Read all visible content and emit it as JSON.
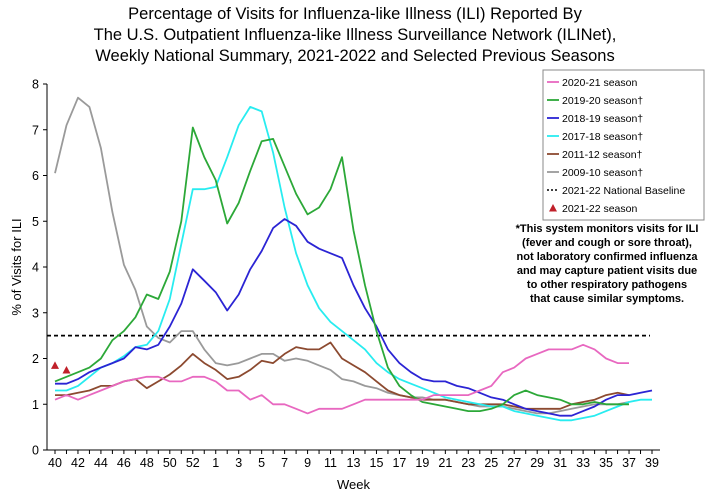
{
  "chart_data": {
    "type": "line",
    "title_lines": [
      "Percentage of Visits for Influenza-like Illness (ILI) Reported By",
      "The U.S. Outpatient Influenza-like Illness Surveillance Network (ILINet),",
      "Weekly National Summary, 2021-2022 and Selected Previous Seasons"
    ],
    "xlabel": "Week",
    "ylabel": "% of Visits for ILI",
    "ylim": [
      0,
      8
    ],
    "yticks": [
      0,
      1,
      2,
      3,
      4,
      5,
      6,
      7,
      8
    ],
    "x_labels": [
      "40",
      "42",
      "44",
      "46",
      "48",
      "50",
      "52",
      "1",
      "3",
      "5",
      "7",
      "9",
      "11",
      "13",
      "15",
      "17",
      "19",
      "21",
      "23",
      "25",
      "27",
      "29",
      "31",
      "33",
      "35",
      "37",
      "39"
    ],
    "n_weeks": 53,
    "baseline": {
      "name": "2021-22 National Baseline",
      "value": 2.5,
      "color": "#000000"
    },
    "series": [
      {
        "name": "2020-21 season",
        "color": "#e868c0",
        "values": [
          1.1,
          1.2,
          1.1,
          1.2,
          1.3,
          1.4,
          1.5,
          1.55,
          1.6,
          1.6,
          1.5,
          1.5,
          1.6,
          1.6,
          1.5,
          1.3,
          1.3,
          1.1,
          1.2,
          1.0,
          1.0,
          0.9,
          0.8,
          0.9,
          0.9,
          0.9,
          1.0,
          1.1,
          1.1,
          1.1,
          1.1,
          1.1,
          1.1,
          1.2,
          1.2,
          1.2,
          1.2,
          1.3,
          1.4,
          1.7,
          1.8,
          2.0,
          2.1,
          2.2,
          2.2,
          2.2,
          2.3,
          2.2,
          2.0,
          1.9,
          1.9
        ]
      },
      {
        "name": "2019-20 season†",
        "color": "#2ca838",
        "values": [
          1.5,
          1.6,
          1.7,
          1.8,
          2.0,
          2.4,
          2.6,
          2.9,
          3.4,
          3.3,
          3.9,
          5.0,
          7.05,
          6.4,
          5.9,
          4.95,
          5.4,
          6.1,
          6.75,
          6.8,
          6.2,
          5.6,
          5.15,
          5.3,
          5.7,
          6.4,
          4.8,
          3.6,
          2.6,
          1.8,
          1.4,
          1.2,
          1.05,
          1.0,
          0.95,
          0.9,
          0.85,
          0.85,
          0.9,
          1.0,
          1.2,
          1.3,
          1.2,
          1.15,
          1.1,
          1.0,
          1.0,
          1.05,
          1.0,
          1.0,
          1.0
        ]
      },
      {
        "name": "2018-19 season†",
        "color": "#2b24d4",
        "values": [
          1.45,
          1.45,
          1.55,
          1.7,
          1.8,
          1.9,
          2.0,
          2.25,
          2.2,
          2.3,
          2.7,
          3.2,
          3.95,
          3.7,
          3.45,
          3.05,
          3.4,
          3.95,
          4.35,
          4.85,
          5.05,
          4.9,
          4.55,
          4.4,
          4.3,
          4.2,
          3.6,
          3.1,
          2.7,
          2.2,
          1.9,
          1.7,
          1.55,
          1.5,
          1.5,
          1.4,
          1.35,
          1.25,
          1.15,
          1.1,
          1.0,
          0.9,
          0.85,
          0.8,
          0.75,
          0.75,
          0.85,
          0.95,
          1.1,
          1.2,
          1.2,
          1.25,
          1.3
        ]
      },
      {
        "name": "2017-18 season†",
        "color": "#28ecf0",
        "values": [
          1.3,
          1.3,
          1.4,
          1.6,
          1.8,
          1.9,
          2.05,
          2.25,
          2.3,
          2.6,
          3.3,
          4.5,
          5.7,
          5.7,
          5.75,
          6.4,
          7.1,
          7.5,
          7.4,
          6.5,
          5.3,
          4.3,
          3.6,
          3.1,
          2.8,
          2.6,
          2.4,
          2.2,
          1.9,
          1.7,
          1.55,
          1.45,
          1.35,
          1.25,
          1.15,
          1.1,
          1.05,
          1.0,
          0.95,
          0.95,
          0.85,
          0.8,
          0.75,
          0.7,
          0.65,
          0.65,
          0.7,
          0.75,
          0.85,
          0.95,
          1.05,
          1.1,
          1.1
        ]
      },
      {
        "name": "2011-12 season†",
        "color": "#8c4a30",
        "values": [
          1.2,
          1.2,
          1.25,
          1.3,
          1.4,
          1.4,
          1.5,
          1.55,
          1.35,
          1.5,
          1.65,
          1.85,
          2.1,
          1.9,
          1.75,
          1.55,
          1.6,
          1.75,
          1.95,
          1.9,
          2.1,
          2.25,
          2.2,
          2.2,
          2.35,
          2.0,
          1.85,
          1.7,
          1.5,
          1.3,
          1.2,
          1.15,
          1.1,
          1.1,
          1.1,
          1.05,
          1.0,
          1.0,
          1.0,
          1.0,
          0.95,
          0.9,
          0.9,
          0.9,
          0.9,
          1.0,
          1.05,
          1.1,
          1.2,
          1.25,
          1.2
        ]
      },
      {
        "name": "2009-10 season†",
        "color": "#9a9a9a",
        "values": [
          6.05,
          7.1,
          7.7,
          7.5,
          6.6,
          5.2,
          4.05,
          3.5,
          2.7,
          2.45,
          2.35,
          2.6,
          2.6,
          2.2,
          1.9,
          1.85,
          1.9,
          2.0,
          2.1,
          2.1,
          1.95,
          2.0,
          1.95,
          1.85,
          1.75,
          1.55,
          1.5,
          1.4,
          1.35,
          1.25,
          1.2,
          1.15,
          1.15,
          1.1,
          1.1,
          1.05,
          1.0,
          0.95,
          0.95,
          0.95,
          0.9,
          0.85,
          0.8,
          0.8,
          0.85,
          0.9,
          0.95,
          1.0,
          1.0,
          1.0,
          1.05
        ]
      }
    ],
    "current_season": {
      "name": "2021-22 season",
      "color": "#c0202a",
      "values": [
        1.85,
        1.75
      ]
    }
  },
  "note": "*This system monitors visits for ILI\n(fever and cough or sore throat),\nnot laboratory confirmed influenza\nand may capture patient visits due\nto other respiratory pathogens\nthat cause similar symptoms."
}
